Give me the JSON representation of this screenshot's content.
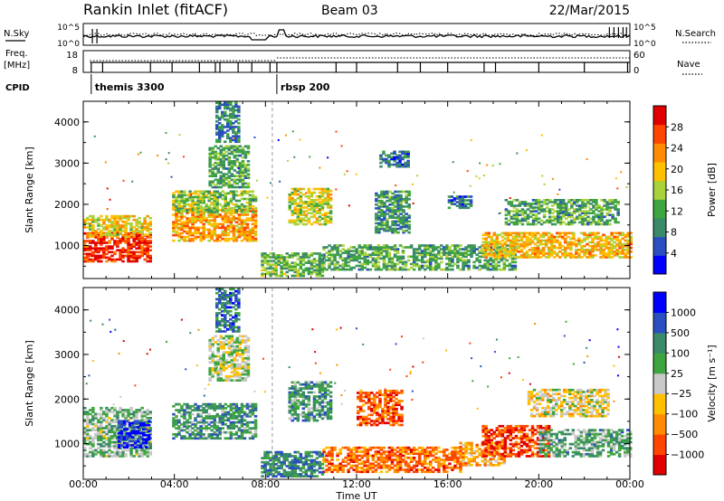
{
  "header": {
    "station": "Rankin Inlet (fitACF)",
    "beam": "Beam 03",
    "date": "22/Mar/2015"
  },
  "summary": {
    "nsky_label": "N.Sky",
    "nsearch_label": "N.Search",
    "nsky_ticks": [
      "10^5",
      "10^0"
    ],
    "nsearch_ticks": [
      "10^5",
      "10^0"
    ],
    "freq_label_1": "Freq.",
    "freq_label_2": "[MHz]",
    "freq_ticks": [
      "18",
      "8"
    ],
    "nave_label": "Nave",
    "nave_ticks": [
      "60",
      "0"
    ],
    "cpid_label": "CPID",
    "cpid_events": [
      {
        "time_h": 0.35,
        "label": "themis 3300"
      },
      {
        "time_h": 8.5,
        "label": "rbsp 200"
      }
    ],
    "frequency_mhz": 12,
    "nave_level": 30
  },
  "chart_data": [
    {
      "type": "heatmap",
      "name": "Power",
      "ylabel": "Slant Range [km]",
      "yticks": [
        "1000",
        "2000",
        "3000",
        "4000"
      ],
      "ylim": [
        200,
        4500
      ],
      "xlim": [
        0,
        24
      ],
      "colorbar_label": "Power [dB]",
      "colorbar_ticks": [
        "28",
        "24",
        "20",
        "16",
        "12",
        "8",
        "4"
      ],
      "colorbar_colors": [
        "#0000ff",
        "#2a4fc0",
        "#3a8a6a",
        "#3fa63f",
        "#a9d23a",
        "#ffc000",
        "#ff8c00",
        "#ff4500",
        "#e00000"
      ],
      "regions": [
        {
          "t0": 0.0,
          "t1": 2.9,
          "r0": 600,
          "r1": 1300,
          "level": 0.95
        },
        {
          "t0": 0.0,
          "t1": 2.9,
          "r0": 1200,
          "r1": 1700,
          "level": 0.6
        },
        {
          "t0": 3.9,
          "t1": 7.6,
          "r0": 1100,
          "r1": 1900,
          "level": 0.7
        },
        {
          "t0": 3.9,
          "t1": 7.6,
          "r0": 1800,
          "r1": 2300,
          "level": 0.45
        },
        {
          "t0": 5.5,
          "t1": 7.2,
          "r0": 2400,
          "r1": 3400,
          "level": 0.35
        },
        {
          "t0": 5.8,
          "t1": 6.8,
          "r0": 3500,
          "r1": 4450,
          "level": 0.25
        },
        {
          "t0": 9.0,
          "t1": 10.8,
          "r0": 1500,
          "r1": 2400,
          "level": 0.55
        },
        {
          "t0": 12.8,
          "t1": 14.3,
          "r0": 1300,
          "r1": 2300,
          "level": 0.3
        },
        {
          "t0": 13.0,
          "t1": 14.2,
          "r0": 2900,
          "r1": 3300,
          "level": 0.2
        },
        {
          "t0": 10.5,
          "t1": 19.0,
          "r0": 400,
          "r1": 1000,
          "level": 0.35
        },
        {
          "t0": 16.0,
          "t1": 17.0,
          "r0": 1900,
          "r1": 2200,
          "level": 0.2
        },
        {
          "t0": 17.5,
          "t1": 24.0,
          "r0": 700,
          "r1": 1300,
          "level": 0.65
        },
        {
          "t0": 18.5,
          "t1": 23.5,
          "r0": 1500,
          "r1": 2100,
          "level": 0.35
        },
        {
          "t0": 7.8,
          "t1": 10.5,
          "r0": 250,
          "r1": 800,
          "level": 0.4
        }
      ]
    },
    {
      "type": "heatmap",
      "name": "Velocity",
      "ylabel": "Slant Range [km]",
      "yticks": [
        "1000",
        "2000",
        "3000",
        "4000"
      ],
      "ylim": [
        200,
        4500
      ],
      "xlim": [
        0,
        24
      ],
      "colorbar_label": "Velocity [m s⁻¹]",
      "colorbar_ticks": [
        "1000",
        "500",
        "100",
        "25",
        "−25",
        "−100",
        "−500",
        "−1000"
      ],
      "colorbar_colors": [
        "#e00000",
        "#ff4500",
        "#ff8c00",
        "#ffc000",
        "#c8c8c8",
        "#3fa63f",
        "#3a8a6a",
        "#2a4fc0",
        "#0000ff"
      ],
      "regions": [
        {
          "t0": 0.0,
          "t1": 2.9,
          "r0": 700,
          "r1": 1800,
          "level": 0.6
        },
        {
          "t0": 1.5,
          "t1": 2.9,
          "r0": 900,
          "r1": 1500,
          "level": 0.95
        },
        {
          "t0": 3.9,
          "t1": 7.6,
          "r0": 1100,
          "r1": 1900,
          "level": 0.7
        },
        {
          "t0": 5.5,
          "t1": 7.2,
          "r0": 2400,
          "r1": 3400,
          "level": 0.5
        },
        {
          "t0": 5.8,
          "t1": 6.8,
          "r0": 3500,
          "r1": 4450,
          "level": 0.8
        },
        {
          "t0": 9.0,
          "t1": 10.8,
          "r0": 1500,
          "r1": 2400,
          "level": 0.7
        },
        {
          "t0": 12.0,
          "t1": 14.0,
          "r0": 1400,
          "r1": 2200,
          "level": 0.15
        },
        {
          "t0": 10.5,
          "t1": 16.5,
          "r0": 350,
          "r1": 900,
          "level": 0.2
        },
        {
          "t0": 16.5,
          "t1": 18.5,
          "r0": 500,
          "r1": 1000,
          "level": 0.3
        },
        {
          "t0": 17.5,
          "t1": 20.5,
          "r0": 700,
          "r1": 1400,
          "level": 0.1
        },
        {
          "t0": 20.0,
          "t1": 24.0,
          "r0": 700,
          "r1": 1300,
          "level": 0.65
        },
        {
          "t0": 19.5,
          "t1": 23.0,
          "r0": 1600,
          "r1": 2200,
          "level": 0.45
        },
        {
          "t0": 7.8,
          "t1": 10.5,
          "r0": 250,
          "r1": 800,
          "level": 0.75
        }
      ]
    }
  ],
  "xaxis": {
    "label": "Time UT",
    "ticks": [
      "00:00",
      "04:00",
      "08:00",
      "12:00",
      "16:00",
      "20:00",
      "00:00"
    ]
  }
}
